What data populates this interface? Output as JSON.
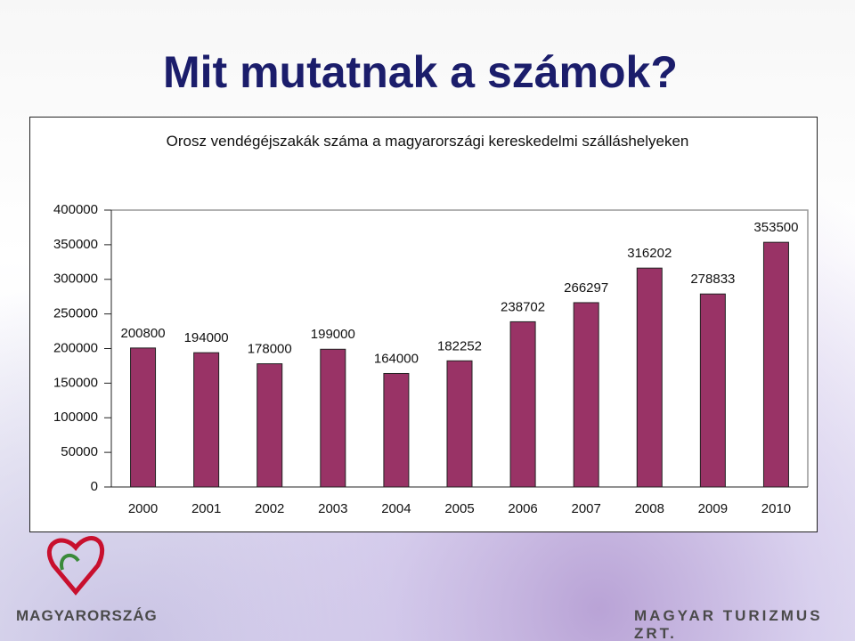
{
  "slide_title": "Mit mutatnak a számok?",
  "chart_data": {
    "type": "bar",
    "title": "Orosz vendégéjszakák száma  a magyarországi kereskedelmi szálláshelyeken",
    "categories": [
      "2000",
      "2001",
      "2002",
      "2003",
      "2004",
      "2005",
      "2006",
      "2007",
      "2008",
      "2009",
      "2010"
    ],
    "values": [
      200800,
      194000,
      178000,
      199000,
      164000,
      182252,
      238702,
      266297,
      316202,
      278833,
      353500
    ],
    "color": "#993366",
    "ylim": [
      0,
      400000
    ],
    "yticks": [
      0,
      50000,
      100000,
      150000,
      200000,
      250000,
      300000,
      350000,
      400000
    ],
    "grid": false
  },
  "footer": {
    "left_logo": "MAGYARORSZÁG",
    "right_logo": "MAGYAR TURIZMUS ZRT."
  }
}
